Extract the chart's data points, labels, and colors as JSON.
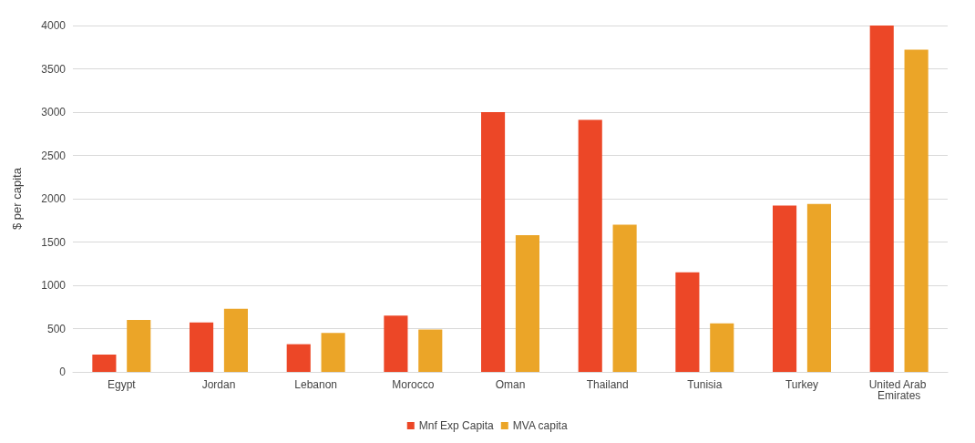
{
  "chart_data": {
    "type": "bar",
    "ylabel": "$ per capita",
    "categories": [
      "Egypt",
      "Jordan",
      "Lebanon",
      "Morocco",
      "Oman",
      "Thailand",
      "Tunisia",
      "Turkey",
      "United Arab Emirates"
    ],
    "series": [
      {
        "name": "Mnf Exp Capita",
        "color": "#ec4727",
        "values": [
          200,
          570,
          320,
          650,
          3000,
          2910,
          1150,
          1920,
          4000
        ]
      },
      {
        "name": "MVA capita",
        "color": "#eba528",
        "values": [
          600,
          730,
          450,
          490,
          1580,
          1700,
          560,
          1940,
          3720
        ]
      }
    ],
    "ylim": [
      0,
      4000
    ],
    "yticks": [
      0,
      500,
      1000,
      1500,
      2000,
      2500,
      3000,
      3500,
      4000
    ],
    "grid": "y",
    "legend": "bottom"
  }
}
